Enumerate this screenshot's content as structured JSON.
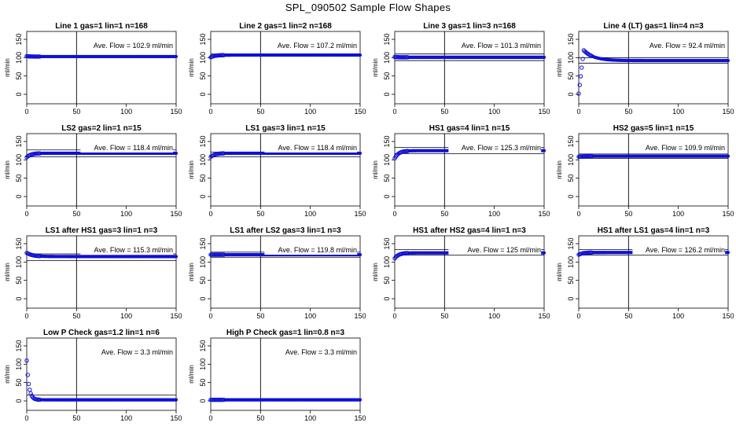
{
  "title": "SPL_090502  Sample Flow Shapes",
  "colors": {
    "points": "#1010d8",
    "axis": "#000000"
  },
  "panel_common": {
    "ylabel": "ml/min",
    "xticks": [
      0,
      50,
      100,
      150
    ],
    "yticks": [
      0,
      50,
      100,
      150
    ],
    "xlim": [
      0,
      150
    ],
    "ylim": [
      0,
      150
    ],
    "annotation_prefix": "Ave. Flow =",
    "annotation_unit": "ml/min"
  },
  "chart_data": [
    {
      "type": "scatter",
      "title": "Line 1 gas=1 lin=1 n=168",
      "ave_flow_label": "102.9",
      "ave_flow": 102.9,
      "hlines": [
        104,
        101
      ],
      "vline": 50,
      "shape": "flat",
      "start": 104,
      "level": 103
    },
    {
      "type": "scatter",
      "title": "Line 2 gas=1 lin=2 n=168",
      "ave_flow_label": "107.2",
      "ave_flow": 107.2,
      "hlines": [
        110,
        104
      ],
      "vline": 50,
      "shape": "rise",
      "start": 101,
      "level": 107
    },
    {
      "type": "scatter",
      "title": "Line 3 gas=1 lin=3 n=168",
      "ave_flow_label": "101.3",
      "ave_flow": 101.3,
      "hlines": [
        110,
        92
      ],
      "vline": 50,
      "shape": "flat",
      "start": 102,
      "level": 101
    },
    {
      "type": "scatter",
      "title": "Line 4 (LT) gas=1 lin=4 n=3",
      "ave_flow_label": "92.4",
      "ave_flow": 92.4,
      "hlines": [
        100,
        85
      ],
      "vline": 50,
      "shape": "overshoot",
      "start": 2,
      "peak": 120,
      "level": 92
    },
    {
      "type": "scatter",
      "title": "LS2 gas=2 lin=1 n=15",
      "ave_flow_label": "118.4",
      "ave_flow": 118.4,
      "hlines": [
        127,
        108
      ],
      "vline": 50,
      "shape": "rise",
      "start": 107,
      "level": 118
    },
    {
      "type": "scatter",
      "title": "LS1 gas=3 lin=1 n=15",
      "ave_flow_label": "118.4",
      "ave_flow": 118.4,
      "hlines": [
        121,
        108
      ],
      "vline": 50,
      "shape": "rise",
      "start": 108,
      "level": 118
    },
    {
      "type": "scatter",
      "title": "HS1 gas=4 lin=1 n=15",
      "ave_flow_label": "125.3",
      "ave_flow": 125.3,
      "hlines": [
        134,
        117
      ],
      "vline": 50,
      "shape": "rise",
      "start": 104,
      "level": 125
    },
    {
      "type": "scatter",
      "title": "HS2 gas=5 lin=1 n=15",
      "ave_flow_label": "109.9",
      "ave_flow": 109.9,
      "hlines": [
        116,
        104
      ],
      "vline": 50,
      "shape": "flat",
      "start": 108,
      "level": 110
    },
    {
      "type": "scatter",
      "title": "LS1 after HS1 gas=3 lin=1 n=3",
      "ave_flow_label": "115.3",
      "ave_flow": 115.3,
      "hlines": [
        122,
        104
      ],
      "vline": 50,
      "shape": "fall",
      "start": 125,
      "level": 115
    },
    {
      "type": "scatter",
      "title": "LS1 after LS2 gas=3 lin=1 n=3",
      "ave_flow_label": "119.8",
      "ave_flow": 119.8,
      "hlines": [
        127,
        113
      ],
      "vline": 50,
      "shape": "flat",
      "start": 120,
      "level": 120
    },
    {
      "type": "scatter",
      "title": "HS1 after HS2 gas=4 lin=1 n=3",
      "ave_flow_label": "125",
      "ave_flow": 125,
      "hlines": [
        134,
        119
      ],
      "vline": 50,
      "shape": "rise",
      "start": 110,
      "level": 125
    },
    {
      "type": "scatter",
      "title": "HS1 after LS1 gas=4 lin=1 n=3",
      "ave_flow_label": "126.2",
      "ave_flow": 126.2,
      "hlines": [
        134,
        119
      ],
      "vline": 50,
      "shape": "rise",
      "start": 120,
      "level": 126
    },
    {
      "type": "scatter",
      "title": "Low P Check gas=1.2 lin=1 n=6",
      "ave_flow_label": "3.3",
      "ave_flow": 3.3,
      "hlines": [
        16
      ],
      "vline": 50,
      "shape": "decay",
      "start": 110,
      "level": 3
    },
    {
      "type": "scatter",
      "title": "High P Check gas=1 lin=0.8 n=3",
      "ave_flow_label": "3.3",
      "ave_flow": 3.3,
      "hlines": [],
      "vline": 50,
      "shape": "flat",
      "start": 3,
      "level": 3
    }
  ]
}
